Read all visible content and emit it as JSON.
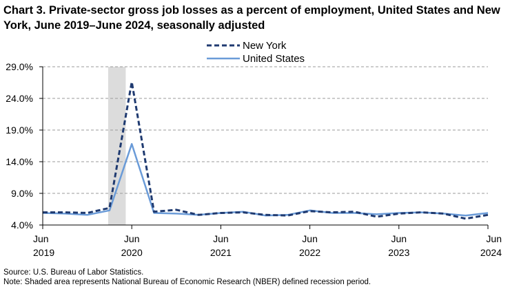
{
  "chart_data": {
    "type": "line",
    "title": "Chart 3. Private-sector gross job losses as a percent of employment, United States and New York, June 2019–June 2024, seasonally adjusted",
    "x": [
      "2019-06",
      "2019-09",
      "2019-12",
      "2020-03",
      "2020-06",
      "2020-09",
      "2020-12",
      "2021-03",
      "2021-06",
      "2021-09",
      "2021-12",
      "2022-03",
      "2022-06",
      "2022-09",
      "2022-12",
      "2023-03",
      "2023-06",
      "2023-09",
      "2023-12",
      "2024-03",
      "2024-06"
    ],
    "x_tick_labels": [
      {
        "month": "Jun",
        "year": "2019"
      },
      {
        "month": "Jun",
        "year": "2020"
      },
      {
        "month": "Jun",
        "year": "2021"
      },
      {
        "month": "Jun",
        "year": "2022"
      },
      {
        "month": "Jun",
        "year": "2023"
      },
      {
        "month": "Jun",
        "year": "2024"
      }
    ],
    "y_tick_labels": [
      "4.0%",
      "9.0%",
      "14.0%",
      "19.0%",
      "24.0%",
      "29.0%"
    ],
    "ylim": [
      4.0,
      29.0
    ],
    "y_ticks": [
      4,
      9,
      14,
      19,
      24,
      29
    ],
    "grid": true,
    "legend_position": "top-center",
    "recession_shading": {
      "start": "2020-03",
      "end": "2020-05"
    },
    "series": [
      {
        "name": "New York",
        "style": "dashed",
        "color": "#1f3a70",
        "values": [
          6.0,
          6.0,
          5.9,
          6.7,
          26.6,
          6.1,
          6.4,
          5.6,
          5.9,
          6.0,
          5.6,
          5.5,
          6.2,
          6.0,
          6.1,
          5.3,
          5.8,
          6.0,
          5.8,
          5.0,
          5.6
        ]
      },
      {
        "name": "United States",
        "style": "solid",
        "color": "#6a9bd8",
        "values": [
          5.9,
          5.8,
          5.6,
          6.3,
          16.8,
          5.9,
          5.8,
          5.6,
          5.9,
          6.1,
          5.5,
          5.6,
          6.3,
          5.9,
          5.9,
          5.7,
          5.9,
          6.0,
          5.8,
          5.5,
          5.9
        ]
      }
    ]
  },
  "footnotes": {
    "source": "Source: U.S. Bureau of Labor Statistics.",
    "note": "Note: Shaded area represents National Bureau of Economic Research (NBER) defined recession period."
  }
}
